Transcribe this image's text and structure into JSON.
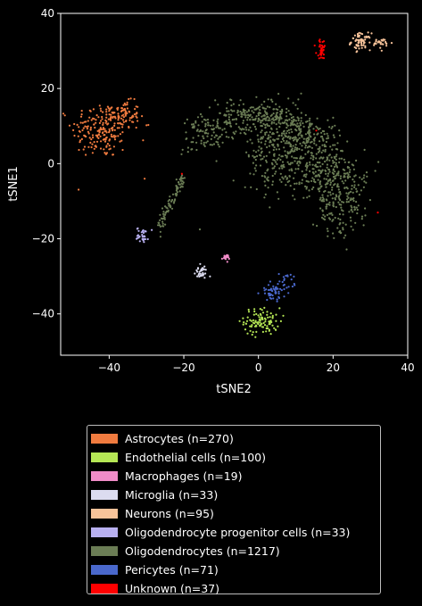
{
  "chart_data": {
    "type": "scatter",
    "xlabel": "tSNE2",
    "ylabel": "tSNE1",
    "xlim": [
      -53,
      40
    ],
    "ylim": [
      -51,
      40
    ],
    "xticks": [
      -40,
      -20,
      0,
      20,
      40
    ],
    "yticks": [
      -40,
      -20,
      0,
      20,
      40
    ],
    "xtick_labels": [
      "−40",
      "−20",
      "0",
      "20",
      "40"
    ],
    "ytick_labels": [
      "−40",
      "−20",
      "0",
      "20",
      "40"
    ],
    "grid": false,
    "background": "#000000",
    "legend_position": "below",
    "series": [
      {
        "name": "Astrocytes (n=270)",
        "color": "#f07b3f",
        "n": 270,
        "clusters": [
          {
            "cx": -42,
            "cy": 9,
            "sx": 4,
            "sy": 3.8
          },
          {
            "cx": -36,
            "cy": 13,
            "sx": 2,
            "sy": 1.8
          }
        ],
        "extra": [
          [
            -30,
            10.2
          ],
          [
            -29.5,
            10.3
          ],
          [
            -30.5,
            -4
          ]
        ]
      },
      {
        "name": "Endothelial cells (n=100)",
        "color": "#b5e655",
        "n": 100,
        "clusters": [
          {
            "cx": 1,
            "cy": -42,
            "sx": 2.4,
            "sy": 1.8
          }
        ]
      },
      {
        "name": "Macrophages (n=19)",
        "color": "#f08cc8",
        "n": 19,
        "clusters": [
          {
            "cx": -8.8,
            "cy": -25,
            "sx": 0.5,
            "sy": 0.4
          }
        ]
      },
      {
        "name": "Microglia (n=33)",
        "color": "#dcdcf0",
        "n": 33,
        "clusters": [
          {
            "cx": -15.5,
            "cy": -29,
            "sx": 0.9,
            "sy": 0.9
          }
        ]
      },
      {
        "name": "Neurons (n=95)",
        "color": "#f7c39a",
        "n": 95,
        "clusters": [
          {
            "cx": 27.5,
            "cy": 32.5,
            "sx": 1.3,
            "sy": 1.1
          },
          {
            "cx": 33,
            "cy": 32,
            "sx": 1.4,
            "sy": 0.7
          }
        ]
      },
      {
        "name": "Oligodendrocyte progenitor cells (n=33)",
        "color": "#b8b0f0",
        "n": 33,
        "clusters": [
          {
            "cx": -31,
            "cy": -19,
            "sx": 0.8,
            "sy": 1.0
          }
        ]
      },
      {
        "name": "Oligodendrocytes (n=1217)",
        "color": "#6b7d55",
        "n": 1217,
        "shape": "crescent",
        "strip": {
          "from": [
            -27,
            -18
          ],
          "to": [
            -20,
            -3
          ]
        },
        "extra": [
          [
            -15.7,
            -17.5
          ]
        ]
      },
      {
        "name": "Pericytes (n=71)",
        "color": "#4a68cc",
        "n": 71,
        "clusters": [
          {
            "cx": 4,
            "cy": -34,
            "sx": 1.6,
            "sy": 1.3
          },
          {
            "cx": 7.5,
            "cy": -31.5,
            "sx": 1.0,
            "sy": 1.2
          }
        ]
      },
      {
        "name": "Unknown (n=37)",
        "color": "#ff0000",
        "n": 37,
        "clusters": [
          {
            "cx": 17,
            "cy": 30.5,
            "sx": 0.7,
            "sy": 1.2
          }
        ],
        "extra": [
          [
            -20.5,
            -2.7
          ],
          [
            32,
            -13
          ],
          [
            15.5,
            8.8
          ]
        ]
      }
    ]
  }
}
